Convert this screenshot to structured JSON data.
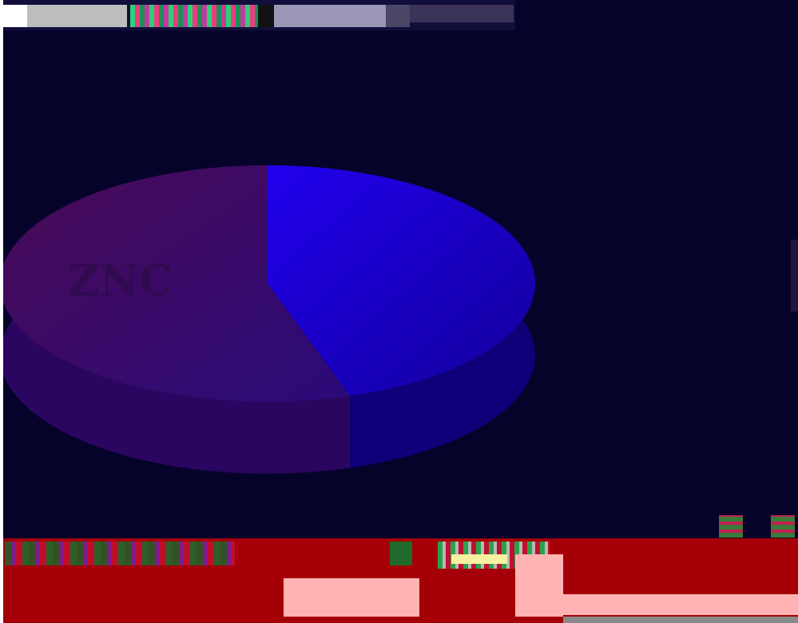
{
  "title": "",
  "pie_labels": {
    "left_slice": "ZNC",
    "right_slice": ""
  },
  "side_labels": [
    "",
    ""
  ],
  "footer": {
    "line_right": "",
    "line_left": "",
    "line_mid": ""
  },
  "colors": {
    "background": "#06032a",
    "slice_left": "#3a0a55",
    "slice_right": "#1a00cc",
    "footer_band": "#a50008",
    "footer_pink": "#ffb3b3"
  },
  "chart_data": {
    "type": "pie",
    "title": "",
    "three_d": true,
    "categories": [
      "ZNC",
      ""
    ],
    "values": [
      55,
      45
    ],
    "colors": [
      "#3a0a55",
      "#1a00cc"
    ],
    "legend": "none"
  }
}
